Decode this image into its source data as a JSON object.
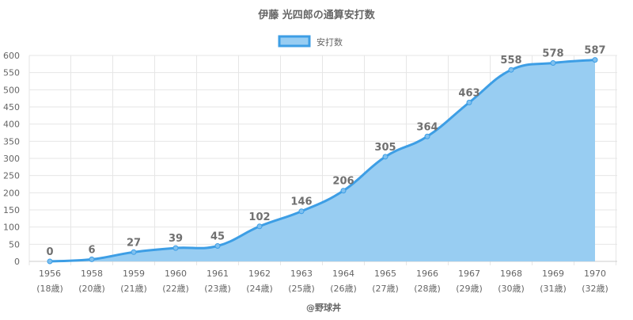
{
  "chart_data": {
    "type": "area",
    "title": "伊藤 光四郎の通算安打数",
    "legend": {
      "label": "安打数",
      "position": "top-center"
    },
    "categories": [
      "1956",
      "1958",
      "1959",
      "1960",
      "1961",
      "1962",
      "1963",
      "1964",
      "1965",
      "1966",
      "1967",
      "1968",
      "1969",
      "1970"
    ],
    "age_labels": [
      "(18歳)",
      "(20歳)",
      "(21歳)",
      "(22歳)",
      "(23歳)",
      "(24歳)",
      "(25歳)",
      "(26歳)",
      "(27歳)",
      "(28歳)",
      "(29歳)",
      "(30歳)",
      "(31歳)",
      "(32歳)"
    ],
    "series": [
      {
        "name": "安打数",
        "values": [
          0,
          6,
          27,
          39,
          45,
          102,
          146,
          206,
          305,
          364,
          463,
          558,
          578,
          587
        ]
      }
    ],
    "yticks": [
      0,
      50,
      100,
      150,
      200,
      250,
      300,
      350,
      400,
      450,
      500,
      550,
      600
    ],
    "ylim": [
      0,
      600
    ],
    "grid": true,
    "xlabel": "",
    "ylabel": "",
    "colors": {
      "line": "#3d9ee5",
      "fill": "#98cdf2",
      "grid": "#e6e6e6",
      "text": "#666666",
      "label": "#707070"
    }
  },
  "watermark": "@野球丼"
}
